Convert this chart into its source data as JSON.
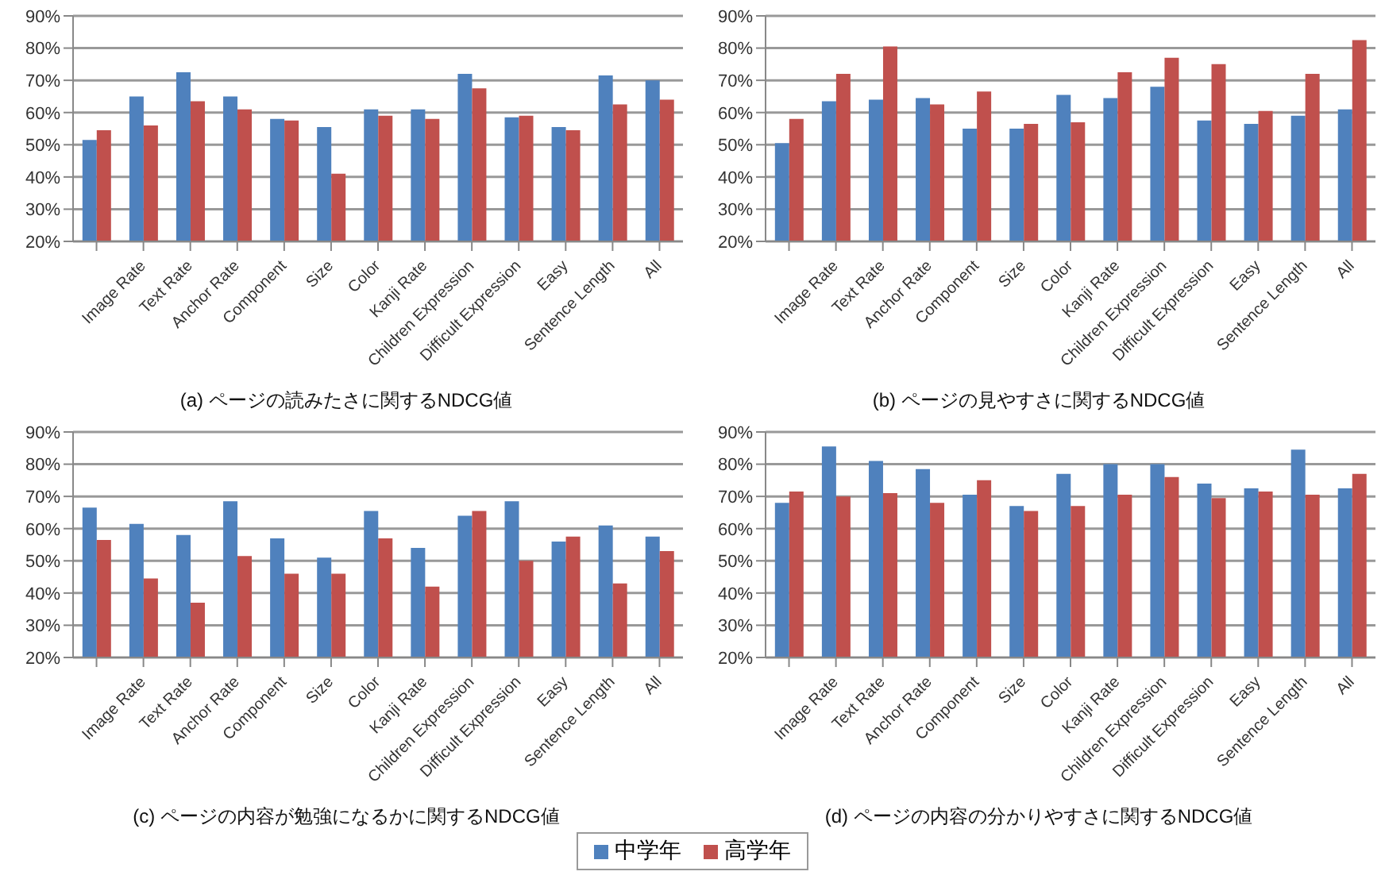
{
  "chart_data": [
    {
      "type": "bar",
      "title": "(a) ページの読みたさに関するNDCG値",
      "categories": [
        null,
        "Image Rate",
        "Text Rate",
        "Anchor Rate",
        "Component",
        "Size",
        "Color",
        "Kanji Rate",
        "Children Expression",
        "Difficult Expression",
        "Easy",
        "Sentence Length",
        "All"
      ],
      "series": [
        {
          "color": "#4f81bd",
          "values": [
            51.5,
            65,
            72.5,
            65,
            58,
            55.5,
            61,
            61,
            72,
            58.5,
            55.5,
            71.5,
            70
          ]
        },
        {
          "color": "#c0504d",
          "values": [
            54.5,
            56,
            63.5,
            61,
            57.5,
            41,
            59,
            58,
            67.5,
            59,
            54.5,
            62.5,
            64
          ]
        }
      ],
      "ylim": [
        20,
        90
      ],
      "yticks": [
        {
          "value": 20,
          "label": "20%"
        },
        {
          "value": 30,
          "label": "30%"
        },
        {
          "value": 40,
          "label": "40%"
        },
        {
          "value": 50,
          "label": "50%"
        },
        {
          "value": 60,
          "label": "60%"
        },
        {
          "value": 70,
          "label": "70%"
        },
        {
          "value": 80,
          "label": "80%"
        },
        {
          "value": 90,
          "label": "90%"
        }
      ],
      "grid": "y"
    },
    {
      "type": "bar",
      "title": "(b) ページの見やすさに関するNDCG値",
      "categories": [
        null,
        "Image Rate",
        "Text Rate",
        "Anchor Rate",
        "Component",
        "Size",
        "Color",
        "Kanji Rate",
        "Children Expression",
        "Difficult Expression",
        "Easy",
        "Sentence Length",
        "All"
      ],
      "series": [
        {
          "color": "#4f81bd",
          "values": [
            50.5,
            63.5,
            64,
            64.5,
            55,
            55,
            65.5,
            64.5,
            68,
            57.5,
            56.5,
            59,
            61
          ]
        },
        {
          "color": "#c0504d",
          "values": [
            58,
            72,
            80.5,
            62.5,
            66.5,
            56.5,
            57,
            72.5,
            77,
            75,
            60.5,
            72,
            82.5
          ]
        }
      ],
      "ylim": [
        20,
        90
      ],
      "yticks": [
        {
          "value": 20,
          "label": "20%"
        },
        {
          "value": 30,
          "label": "30%"
        },
        {
          "value": 40,
          "label": "40%"
        },
        {
          "value": 50,
          "label": "50%"
        },
        {
          "value": 60,
          "label": "60%"
        },
        {
          "value": 70,
          "label": "70%"
        },
        {
          "value": 80,
          "label": "80%"
        },
        {
          "value": 90,
          "label": "90%"
        }
      ],
      "grid": "y"
    },
    {
      "type": "bar",
      "title": "(c) ページの内容が勉強になるかに関するNDCG値",
      "categories": [
        null,
        "Image Rate",
        "Text Rate",
        "Anchor Rate",
        "Component",
        "Size",
        "Color",
        "Kanji Rate",
        "Children Expression",
        "Difficult Expression",
        "Easy",
        "Sentence Length",
        "All"
      ],
      "series": [
        {
          "color": "#4f81bd",
          "values": [
            66.5,
            61.5,
            58,
            68.5,
            57,
            51,
            65.5,
            54,
            64,
            68.5,
            56,
            61,
            57.5
          ]
        },
        {
          "color": "#c0504d",
          "values": [
            56.5,
            44.5,
            37,
            51.5,
            46,
            46,
            57,
            42,
            65.5,
            50,
            57.5,
            43,
            53
          ]
        }
      ],
      "ylim": [
        20,
        90
      ],
      "yticks": [
        {
          "value": 20,
          "label": "20%"
        },
        {
          "value": 30,
          "label": "30%"
        },
        {
          "value": 40,
          "label": "40%"
        },
        {
          "value": 50,
          "label": "50%"
        },
        {
          "value": 60,
          "label": "60%"
        },
        {
          "value": 70,
          "label": "70%"
        },
        {
          "value": 80,
          "label": "80%"
        },
        {
          "value": 90,
          "label": "90%"
        }
      ],
      "grid": "y"
    },
    {
      "type": "bar",
      "title": "(d) ページの内容の分かりやすさに関するNDCG値",
      "categories": [
        null,
        "Image Rate",
        "Text Rate",
        "Anchor Rate",
        "Component",
        "Size",
        "Color",
        "Kanji Rate",
        "Children Expression",
        "Difficult Expression",
        "Easy",
        "Sentence Length",
        "All"
      ],
      "series": [
        {
          "name": "中学年",
          "color": "#4f81bd",
          "values": [
            68,
            85.5,
            81,
            78.5,
            70.5,
            67,
            77,
            80,
            80,
            74,
            72.5,
            84.5,
            72.5
          ]
        },
        {
          "name": "高学年",
          "color": "#c0504d",
          "values": [
            71.5,
            70,
            71,
            68,
            75,
            65.5,
            67,
            70.5,
            76,
            69.5,
            71.5,
            70.5,
            77
          ]
        }
      ],
      "ylim": [
        20,
        90
      ],
      "yticks": [
        {
          "value": 20,
          "label": "20%"
        },
        {
          "value": 30,
          "label": "30%"
        },
        {
          "value": 40,
          "label": "40%"
        },
        {
          "value": 50,
          "label": "50%"
        },
        {
          "value": 60,
          "label": "60%"
        },
        {
          "value": 70,
          "label": "70%"
        },
        {
          "value": 80,
          "label": "80%"
        },
        {
          "value": 90,
          "label": "90%"
        }
      ],
      "grid": "y",
      "legend": "bottom"
    }
  ]
}
